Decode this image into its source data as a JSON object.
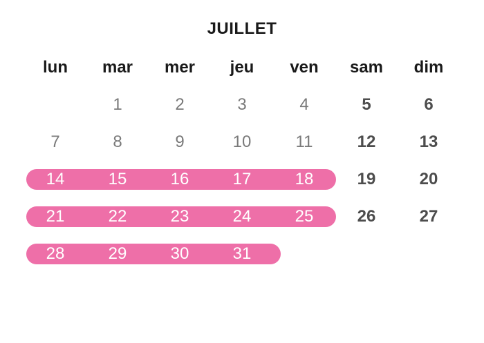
{
  "calendar": {
    "month": "JUILLET",
    "weekdays": [
      "lun",
      "mar",
      "mer",
      "jeu",
      "ven",
      "sam",
      "dim"
    ],
    "weeks": [
      [
        "",
        "1",
        "2",
        "3",
        "4",
        "5",
        "6"
      ],
      [
        "7",
        "8",
        "9",
        "10",
        "11",
        "12",
        "13"
      ],
      [
        "14",
        "15",
        "16",
        "17",
        "18",
        "19",
        "20"
      ],
      [
        "21",
        "22",
        "23",
        "24",
        "25",
        "26",
        "27"
      ],
      [
        "28",
        "29",
        "30",
        "31",
        "",
        "",
        ""
      ]
    ],
    "highlighted_days": [
      "14",
      "15",
      "16",
      "17",
      "18",
      "21",
      "22",
      "23",
      "24",
      "25",
      "28",
      "29",
      "30",
      "31"
    ]
  },
  "colors": {
    "highlight": "#ee6fa8",
    "highlight_text": "#ffffff",
    "weekday_text": "#7a7a7a",
    "weekend_text": "#4d4d4d",
    "heading_text": "#1a1a1a"
  }
}
